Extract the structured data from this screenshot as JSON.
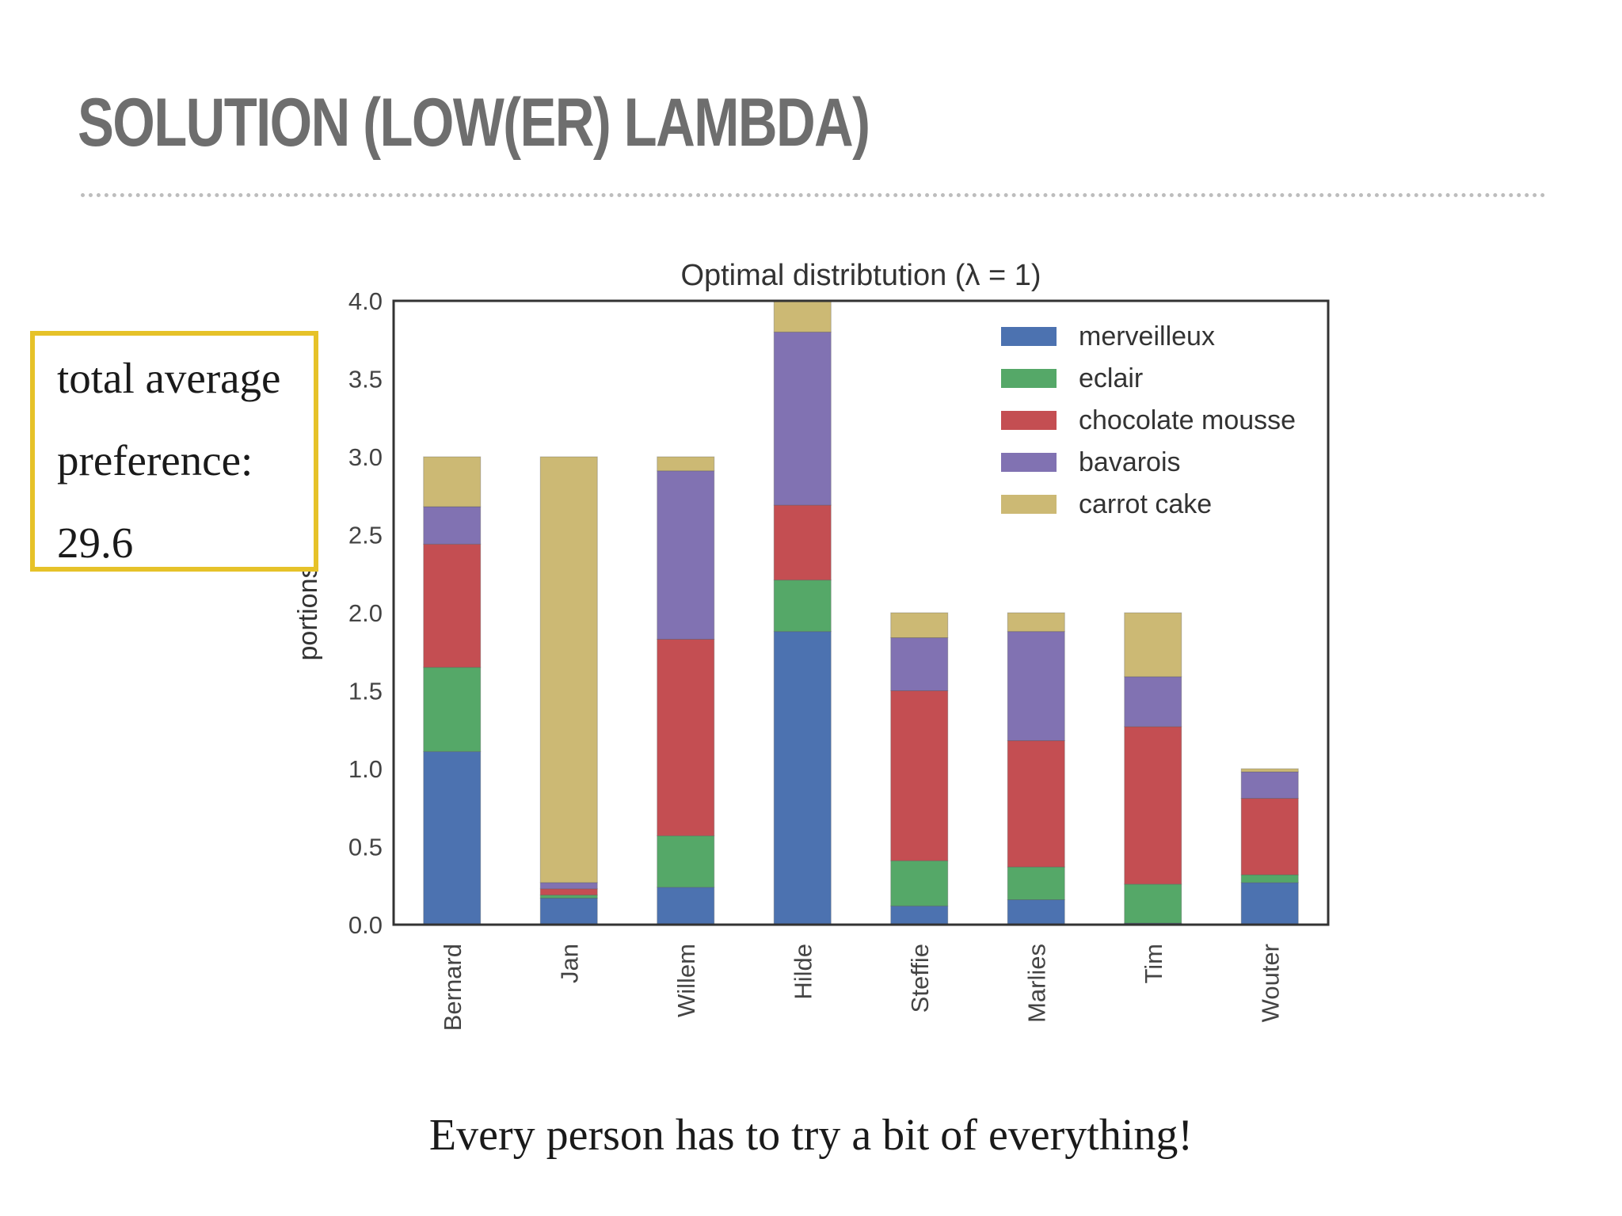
{
  "slide": {
    "title": "SOLUTION (LOW(ER) LAMBDA)",
    "caption": "Every person has to try a bit of everything!"
  },
  "preference_box": {
    "line1": "total average",
    "line2": "preference:",
    "line3": "29.6"
  },
  "colors": {
    "merveilleux": "#4c72b0",
    "eclair": "#55a868",
    "chocolate mousse": "#c44e52",
    "bavarois": "#8172b2",
    "carrot cake": "#ccb974",
    "highlight_border": "#e6c229"
  },
  "chart_data": {
    "type": "bar",
    "stacked": true,
    "title": "Optimal distribtution (λ = 1)",
    "xlabel": "",
    "ylabel": "portions",
    "ylim": [
      0,
      4.0
    ],
    "yticks": [
      "0.0",
      "0.5",
      "1.0",
      "1.5",
      "2.0",
      "2.5",
      "3.0",
      "3.5",
      "4.0"
    ],
    "categories": [
      "Bernard",
      "Jan",
      "Willem",
      "Hilde",
      "Steffie",
      "Marlies",
      "Tim",
      "Wouter"
    ],
    "legend_position": "top-right",
    "grid": false,
    "series": [
      {
        "name": "merveilleux",
        "values": [
          1.11,
          0.17,
          0.24,
          1.88,
          0.12,
          0.16,
          0.01,
          0.27
        ]
      },
      {
        "name": "eclair",
        "values": [
          0.54,
          0.02,
          0.33,
          0.33,
          0.29,
          0.21,
          0.25,
          0.05
        ]
      },
      {
        "name": "chocolate mousse",
        "values": [
          0.79,
          0.04,
          1.26,
          0.48,
          1.09,
          0.81,
          1.01,
          0.49
        ]
      },
      {
        "name": "bavarois",
        "values": [
          0.24,
          0.04,
          1.08,
          1.11,
          0.34,
          0.7,
          0.32,
          0.17
        ]
      },
      {
        "name": "carrot cake",
        "values": [
          0.32,
          2.73,
          0.09,
          0.2,
          0.16,
          0.12,
          0.41,
          0.02
        ]
      }
    ]
  }
}
